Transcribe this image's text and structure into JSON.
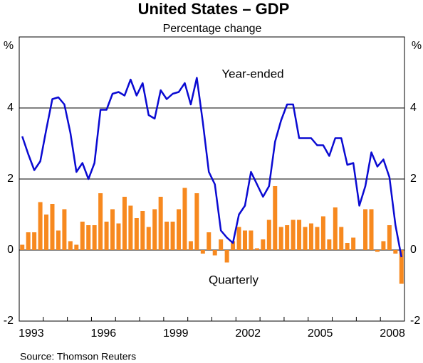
{
  "chart_data": {
    "type": "bar-line",
    "title": "United States – GDP",
    "subtitle": "Percentage change",
    "y_unit": "%",
    "source": "Source: Thomson Reuters",
    "categories": [
      "1993",
      null,
      null,
      null,
      null,
      null,
      null,
      null,
      null,
      null,
      null,
      null,
      "1996",
      null,
      null,
      null,
      null,
      null,
      null,
      null,
      null,
      null,
      null,
      null,
      "1999",
      null,
      null,
      null,
      null,
      null,
      null,
      null,
      null,
      null,
      null,
      null,
      "2002",
      null,
      null,
      null,
      null,
      null,
      null,
      null,
      null,
      null,
      null,
      null,
      "2005",
      null,
      null,
      null,
      null,
      null,
      null,
      null,
      null,
      null,
      null,
      null,
      "2008",
      null,
      null,
      null
    ],
    "series": [
      {
        "name": "Quarterly",
        "kind": "bar",
        "color": "#f7891f",
        "values": [
          0.15,
          0.5,
          0.5,
          1.35,
          1.0,
          1.3,
          0.55,
          1.15,
          0.25,
          0.15,
          0.8,
          0.7,
          0.7,
          1.6,
          0.8,
          1.15,
          0.75,
          1.5,
          1.25,
          0.9,
          1.1,
          0.65,
          1.15,
          1.5,
          0.8,
          0.8,
          1.15,
          1.75,
          0.25,
          1.6,
          -0.1,
          0.5,
          -0.15,
          0.3,
          -0.35,
          0.25,
          0.65,
          0.55,
          0.55,
          0.05,
          0.3,
          0.85,
          1.8,
          0.65,
          0.7,
          0.85,
          0.85,
          0.65,
          0.75,
          0.65,
          0.95,
          0.3,
          1.2,
          0.65,
          0.2,
          0.35,
          0.0,
          1.15,
          1.15,
          -0.05,
          0.25,
          0.7,
          -0.1,
          -0.95
        ]
      },
      {
        "name": "Year-ended",
        "kind": "line",
        "color": "#0a0ad2",
        "values": [
          3.2,
          2.7,
          2.25,
          2.5,
          3.4,
          4.25,
          4.3,
          4.1,
          3.3,
          2.2,
          2.45,
          2.0,
          2.45,
          3.95,
          3.95,
          4.4,
          4.45,
          4.35,
          4.8,
          4.35,
          4.7,
          3.8,
          3.7,
          4.5,
          4.25,
          4.4,
          4.45,
          4.7,
          4.1,
          4.85,
          3.6,
          2.2,
          1.85,
          0.55,
          0.35,
          0.2,
          1.0,
          1.25,
          2.2,
          1.85,
          1.5,
          1.8,
          3.05,
          3.65,
          4.1,
          4.1,
          3.15,
          3.15,
          3.15,
          2.95,
          2.95,
          2.65,
          3.15,
          3.15,
          2.4,
          2.45,
          1.25,
          1.8,
          2.75,
          2.35,
          2.55,
          2.05,
          0.7,
          -0.2
        ]
      }
    ],
    "ylim": [
      -2,
      6
    ],
    "yticks": [
      -2,
      0,
      2,
      4
    ],
    "grid": true
  }
}
